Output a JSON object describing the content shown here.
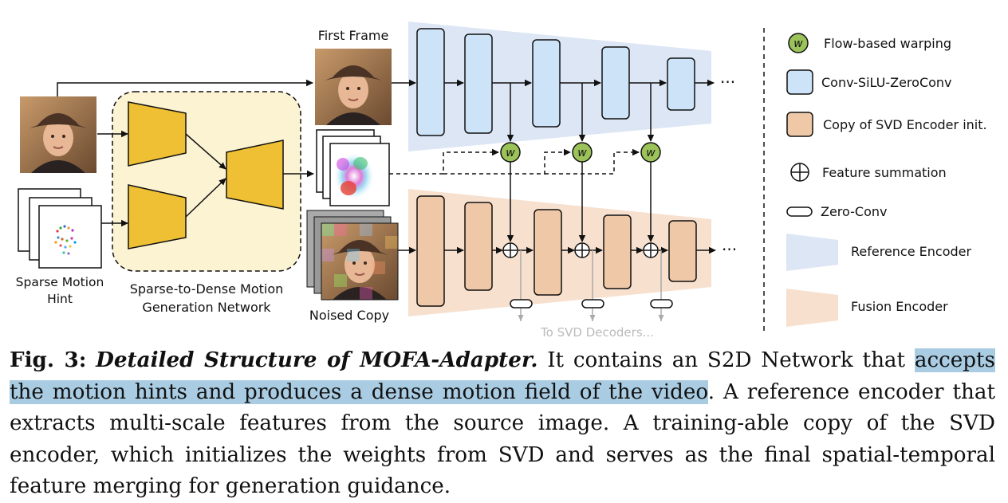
{
  "figure": {
    "labels": {
      "first_frame": "First Frame",
      "sparse_hint_line1": "Sparse Motion",
      "sparse_hint_line2": "Hint",
      "s2d_line1": "Sparse-to-Dense Motion",
      "s2d_line2": "Generation Network",
      "noised_copy": "Noised Copy",
      "to_decoders": "To SVD Decoders...",
      "ellipsis": "···",
      "warp_symbol": "w"
    },
    "legend": [
      {
        "icon": "warp-icon",
        "label": "Flow-based warping"
      },
      {
        "icon": "conv-block-icon",
        "label": "Conv-SiLU-ZeroConv"
      },
      {
        "icon": "svd-block-icon",
        "label": "Copy of SVD Encoder init."
      },
      {
        "icon": "sum-icon",
        "label": "Feature summation"
      },
      {
        "icon": "zero-conv-icon",
        "label": "Zero-Conv"
      },
      {
        "icon": "reference-encoder-icon",
        "label": "Reference Encoder"
      },
      {
        "icon": "fusion-encoder-icon",
        "label": "Fusion Encoder"
      }
    ],
    "colors": {
      "reference_encoder": "#dce6f5",
      "conv_block": "#cde3f8",
      "fusion_encoder": "#f7e0ce",
      "svd_block": "#efc8a8",
      "s2d_background": "#fcf3d3",
      "s2d_block": "#efc033",
      "warp_node": "#9bc35a"
    }
  },
  "caption": {
    "label": "Fig. 3:",
    "title": "Detailed Structure of MOFA-Adapter.",
    "part1": " It contains an S2D Network that ",
    "highlight": "accepts the motion hints and produces a dense motion field of the video",
    "part2": ". A reference encoder that extracts multi-scale features from the source image. A training-able copy of the SVD encoder, which initializes the weights from SVD and serves as the final spatial-temporal feature merging for generation guidance.",
    "highlight_color": "#a9cce3"
  }
}
